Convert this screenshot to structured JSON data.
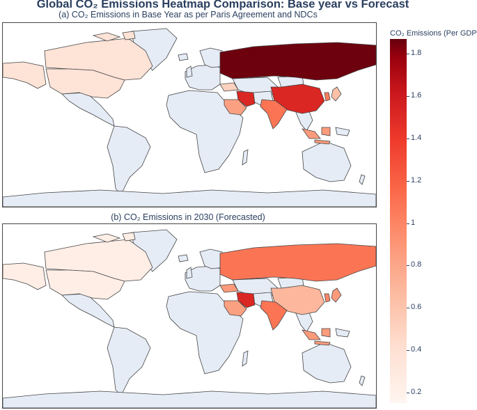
{
  "title": "Global CO₂ Emissions Heatmap Comparison: Base year vs Forecast",
  "chart_data": [
    {
      "type": "heatmap",
      "subtitle": "(a) CO₂ Emissions in Base Year as per Paris Agreement and NDCs",
      "regions": [
        {
          "name": "Canada",
          "value": 0.33
        },
        {
          "name": "Alaska",
          "value": 0.33
        },
        {
          "name": "United States",
          "value": 0.33
        },
        {
          "name": "Russia",
          "value": 1.85
        },
        {
          "name": "China",
          "value": 1.35
        },
        {
          "name": "India",
          "value": 0.95
        },
        {
          "name": "Iran",
          "value": 1.35
        },
        {
          "name": "Saudi Arabia",
          "value": 0.72
        },
        {
          "name": "Indonesia",
          "value": 0.75
        },
        {
          "name": "Korea",
          "value": 0.9
        },
        {
          "name": "Japan",
          "value": 0.55
        },
        {
          "name": "Turkey",
          "value": 0.45
        }
      ]
    },
    {
      "type": "heatmap",
      "subtitle": "(b) CO₂ Emissions in 2030 (Forecasted)",
      "regions": [
        {
          "name": "Canada",
          "value": 0.22
        },
        {
          "name": "Alaska",
          "value": 0.22
        },
        {
          "name": "United States",
          "value": 0.22
        },
        {
          "name": "Russia",
          "value": 0.95
        },
        {
          "name": "China",
          "value": 0.6
        },
        {
          "name": "India",
          "value": 0.95
        },
        {
          "name": "Iran",
          "value": 1.35
        },
        {
          "name": "Saudi Arabia",
          "value": 0.72
        },
        {
          "name": "Indonesia",
          "value": 0.75
        },
        {
          "name": "Korea",
          "value": 0.85
        },
        {
          "name": "Japan",
          "value": 0.75
        },
        {
          "name": "Turkey",
          "value": 0.75
        }
      ]
    }
  ],
  "colorbar": {
    "title": "CO₂ Emissions (Per GDP)",
    "min": 0.15,
    "max": 1.87,
    "ticks": [
      "0.2",
      "0.4",
      "0.6",
      "0.8",
      "1",
      "1.2",
      "1.4",
      "1.6",
      "1.8"
    ],
    "colorscale": "Reds"
  },
  "colors": {
    "land_no_data": "#e5ecf6",
    "border": "#444444",
    "ocean": "#ffffff",
    "text": "#2a3f5f"
  }
}
